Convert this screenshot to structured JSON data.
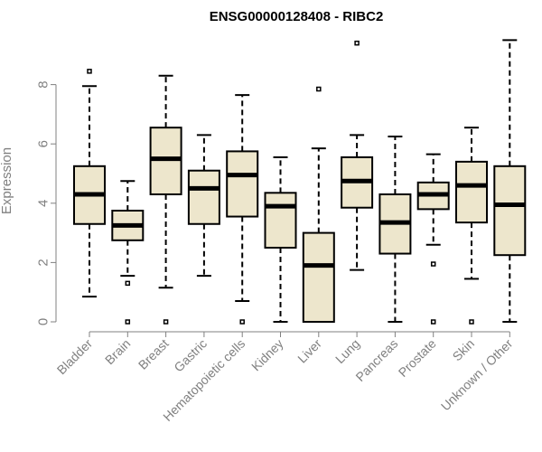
{
  "chart_data": {
    "type": "boxplot",
    "title": "ENSG00000128408 - RIBC2",
    "xlabel": "",
    "ylabel": "Expression",
    "ylim": [
      0,
      9.6
    ],
    "yticks": [
      0,
      2,
      4,
      6,
      8
    ],
    "grid": false,
    "legend": "none",
    "colors": {
      "box_fill": "#ede6cc",
      "box_stroke": "#000000",
      "axis": "#808080",
      "text": "#808080"
    },
    "categories": [
      "Bladder",
      "Brain",
      "Breast",
      "Gastric",
      "Hematopoietic cells",
      "Kidney",
      "Liver",
      "Lung",
      "Pancreas",
      "Prostate",
      "Skin",
      "Unknown / Other"
    ],
    "boxes": [
      {
        "label": "Bladder",
        "whisker_low": 0.85,
        "q1": 3.3,
        "median": 4.3,
        "q3": 5.25,
        "whisker_high": 7.95,
        "outliers": [
          8.45
        ]
      },
      {
        "label": "Brain",
        "whisker_low": 1.55,
        "q1": 2.75,
        "median": 3.25,
        "q3": 3.75,
        "whisker_high": 4.75,
        "outliers": [
          1.3,
          0.0
        ]
      },
      {
        "label": "Breast",
        "whisker_low": 1.15,
        "q1": 4.3,
        "median": 5.5,
        "q3": 6.55,
        "whisker_high": 8.3,
        "outliers": [
          0.0
        ]
      },
      {
        "label": "Gastric",
        "whisker_low": 1.55,
        "q1": 3.3,
        "median": 4.5,
        "q3": 5.1,
        "whisker_high": 6.3,
        "outliers": []
      },
      {
        "label": "Hematopoietic cells",
        "whisker_low": 0.7,
        "q1": 3.55,
        "median": 4.95,
        "q3": 5.75,
        "whisker_high": 7.65,
        "outliers": [
          0.0
        ]
      },
      {
        "label": "Kidney",
        "whisker_low": 0.0,
        "q1": 2.5,
        "median": 3.9,
        "q3": 4.35,
        "whisker_high": 5.55,
        "outliers": []
      },
      {
        "label": "Liver",
        "whisker_low": 0.0,
        "q1": 0.0,
        "median": 1.9,
        "q3": 3.0,
        "whisker_high": 5.85,
        "outliers": [
          7.85
        ]
      },
      {
        "label": "Lung",
        "whisker_low": 1.75,
        "q1": 3.85,
        "median": 4.75,
        "q3": 5.55,
        "whisker_high": 6.3,
        "outliers": [
          9.4
        ]
      },
      {
        "label": "Pancreas",
        "whisker_low": 0.0,
        "q1": 2.3,
        "median": 3.35,
        "q3": 4.3,
        "whisker_high": 6.25,
        "outliers": []
      },
      {
        "label": "Prostate",
        "whisker_low": 2.6,
        "q1": 3.8,
        "median": 4.3,
        "q3": 4.7,
        "whisker_high": 5.65,
        "outliers": [
          1.95,
          0.0
        ]
      },
      {
        "label": "Skin",
        "whisker_low": 1.45,
        "q1": 3.35,
        "median": 4.6,
        "q3": 5.4,
        "whisker_high": 6.55,
        "outliers": [
          0.0
        ]
      },
      {
        "label": "Unknown / Other",
        "whisker_low": 0.0,
        "q1": 2.25,
        "median": 3.95,
        "q3": 5.25,
        "whisker_high": 9.5,
        "outliers": []
      }
    ]
  }
}
